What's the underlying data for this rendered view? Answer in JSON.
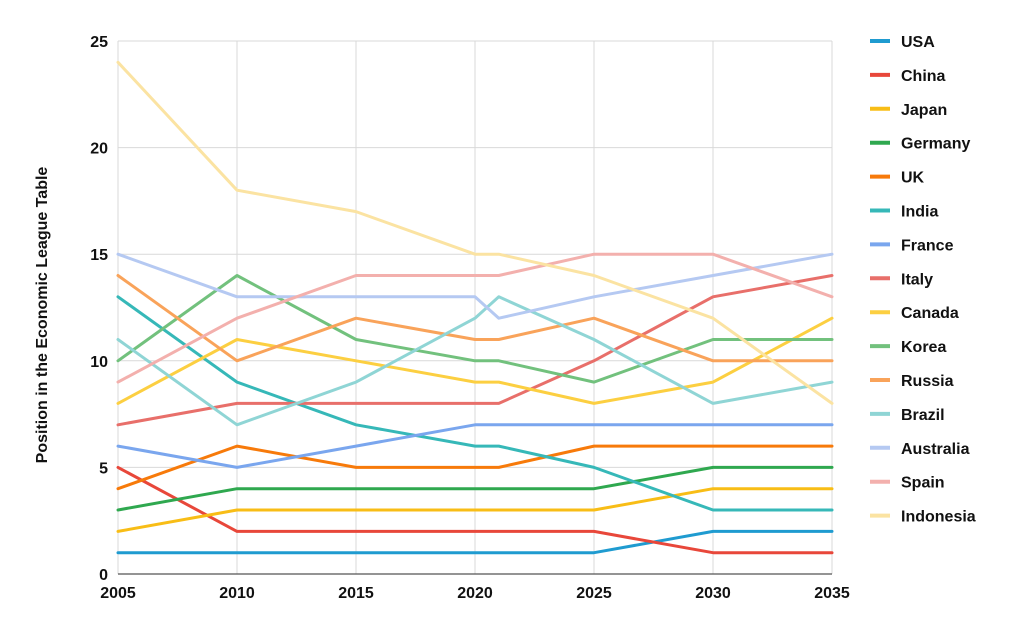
{
  "chart_data": {
    "type": "line",
    "title": "",
    "xlabel": "",
    "ylabel": "Position in the Economic League Table",
    "x": [
      2005,
      2010,
      2015,
      2020,
      2021,
      2025,
      2030,
      2035
    ],
    "x_ticks": [
      "2005",
      "2010",
      "2015",
      "2020",
      "2025",
      "2030",
      "2035"
    ],
    "ylim": [
      0,
      25
    ],
    "y_ticks": [
      "0",
      "5",
      "10",
      "15",
      "20",
      "25"
    ],
    "grid": true,
    "legend": "right",
    "series": [
      {
        "name": "USA",
        "color": "#1f9bd0",
        "values": [
          1,
          1,
          1,
          1,
          1,
          1,
          2,
          2
        ]
      },
      {
        "name": "China",
        "color": "#e8473a",
        "values": [
          5,
          2,
          2,
          2,
          2,
          2,
          1,
          1
        ]
      },
      {
        "name": "Japan",
        "color": "#f8bd16",
        "values": [
          2,
          3,
          3,
          3,
          3,
          3,
          4,
          4
        ]
      },
      {
        "name": "Germany",
        "color": "#2fa84f",
        "values": [
          3,
          4,
          4,
          4,
          4,
          4,
          5,
          5
        ]
      },
      {
        "name": "UK",
        "color": "#f77a0a",
        "values": [
          4,
          6,
          5,
          5,
          5,
          6,
          6,
          6
        ]
      },
      {
        "name": "India",
        "color": "#36b8b8",
        "values": [
          13,
          9,
          7,
          6,
          6,
          5,
          3,
          3
        ]
      },
      {
        "name": "France",
        "color": "#7aa6ee",
        "values": [
          6,
          5,
          6,
          7,
          7,
          7,
          7,
          7
        ]
      },
      {
        "name": "Italy",
        "color": "#e86f6a",
        "values": [
          7,
          8,
          8,
          8,
          8,
          10,
          13,
          14
        ]
      },
      {
        "name": "Canada",
        "color": "#fccf41",
        "values": [
          8,
          11,
          10,
          9,
          9,
          8,
          9,
          12
        ]
      },
      {
        "name": "Korea",
        "color": "#72c17d",
        "values": [
          10,
          14,
          11,
          10,
          10,
          9,
          11,
          11
        ]
      },
      {
        "name": "Russia",
        "color": "#f9a35a",
        "values": [
          14,
          10,
          12,
          11,
          11,
          12,
          10,
          10
        ]
      },
      {
        "name": "Brazil",
        "color": "#8fd5d5",
        "values": [
          11,
          7,
          9,
          12,
          13,
          11,
          8,
          9
        ]
      },
      {
        "name": "Australia",
        "color": "#b5c9f2",
        "values": [
          15,
          13,
          13,
          13,
          12,
          13,
          14,
          15
        ]
      },
      {
        "name": "Spain",
        "color": "#f3b0ad",
        "values": [
          9,
          12,
          14,
          14,
          14,
          15,
          15,
          13
        ]
      },
      {
        "name": "Indonesia",
        "color": "#fbe3a2",
        "values": [
          24,
          18,
          17,
          15,
          15,
          14,
          12,
          8
        ]
      }
    ]
  }
}
